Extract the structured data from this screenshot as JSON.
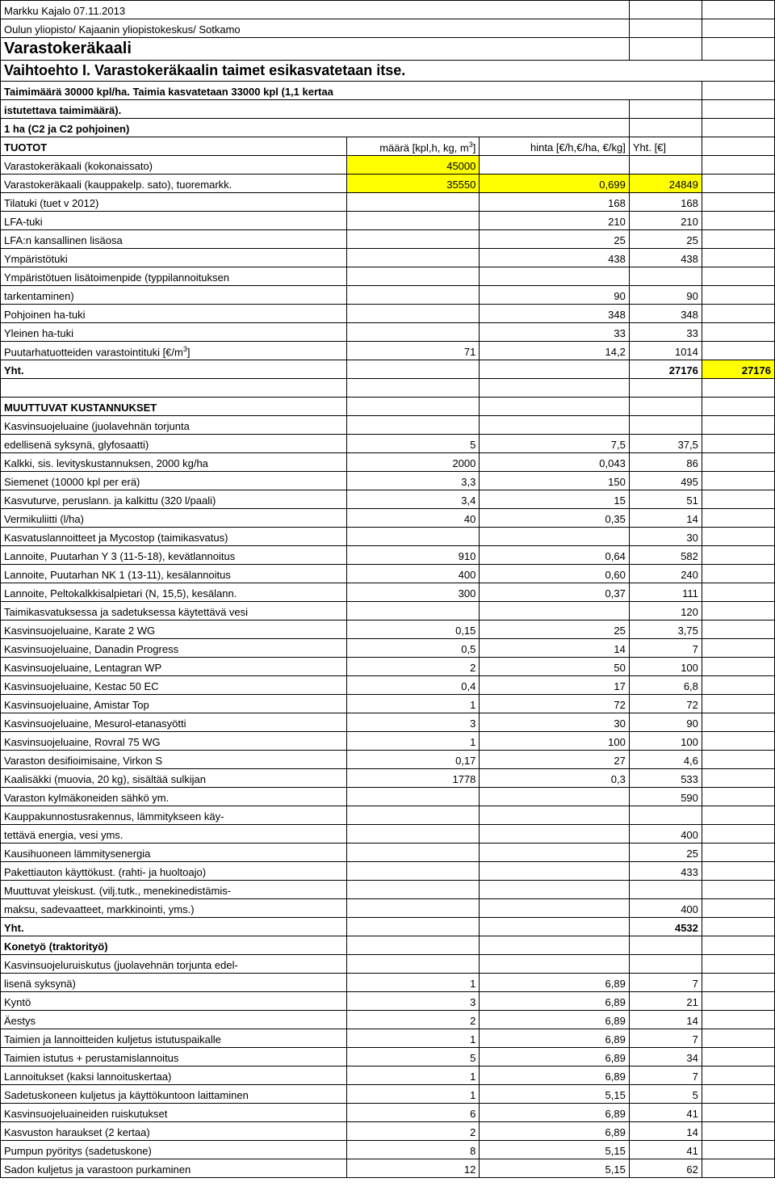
{
  "header": {
    "author_date": "Markku Kajalo 07.11.2013",
    "institution": "Oulun yliopisto/ Kajaanin yliopistokeskus/ Sotkamo",
    "title1": "Varastokeräkaali",
    "title2": "Vaihtoehto I. Varastokeräkaalin taimet esikasvatetaan itse.",
    "subtitle1": "Taimimäärä 30000 kpl/ha. Taimia kasvatetaan 33000 kpl (1,1 kertaa",
    "subtitle2": "istutettava taimimäärä).",
    "area": "1 ha  (C2 ja C2 pohjoinen)"
  },
  "tuotot": {
    "section": "TUOTOT",
    "h1": "määrä [kpl,h, kg, m",
    "h1sup": "3",
    "h1end": "]",
    "h2": "hinta [€/h,€/ha, €/kg]",
    "h3": "Yht. [€]",
    "rows": [
      {
        "label": "Varastokeräkaali (kokonaissato)",
        "c1": "45000",
        "c2": "",
        "c3": "",
        "yellow1": true
      },
      {
        "label": "Varastokeräkaali (kauppakelp. sato), tuoremarkk.",
        "c1": "35550",
        "c2": "0,699",
        "c3": "24849",
        "yellow_row": true
      },
      {
        "label": "Tilatuki (tuet v 2012)",
        "c1": "",
        "c2": "168",
        "c3": "168"
      },
      {
        "label": "LFA-tuki",
        "c1": "",
        "c2": "210",
        "c3": "210"
      },
      {
        "label": "LFA:n kansallinen lisäosa",
        "c1": "",
        "c2": "25",
        "c3": "25"
      },
      {
        "label": "Ympäristötuki",
        "c1": "",
        "c2": "438",
        "c3": "438"
      },
      {
        "label": "Ympäristötuen lisätoimenpide (typpilannoituksen",
        "c1": "",
        "c2": "",
        "c3": ""
      },
      {
        "label": "tarkentaminen)",
        "c1": "",
        "c2": "90",
        "c3": "90"
      },
      {
        "label": "Pohjoinen ha-tuki",
        "c1": "",
        "c2": "348",
        "c3": "348"
      },
      {
        "label": "Yleinen ha-tuki",
        "c1": "",
        "c2": "33",
        "c3": "33"
      },
      {
        "label": "Puutarhatuotteiden varastointituki [€/m³]",
        "c1": "71",
        "c2": "14,2",
        "c3": "1014",
        "sup_label": true
      }
    ],
    "total": {
      "label": "Yht.",
      "c3": "27176",
      "c4": "27176"
    }
  },
  "muuttuvat": {
    "section": "MUUTTUVAT KUSTANNUKSET",
    "sub1": "Kasvinsuojeluaine (juolavehnän torjunta",
    "rows": [
      {
        "label": "edellisenä syksynä, glyfosaatti)",
        "c1": "5",
        "c2": "7,5",
        "c3": "37,5"
      },
      {
        "label": "Kalkki, sis. levityskustannuksen, 2000 kg/ha",
        "c1": "2000",
        "c2": "0,043",
        "c3": "86"
      },
      {
        "label": "Siemenet (10000 kpl per erä)",
        "c1": "3,3",
        "c2": "150",
        "c3": "495"
      },
      {
        "label": "Kasvuturve, peruslann. ja kalkittu (320 l/paali)",
        "c1": "3,4",
        "c2": "15",
        "c3": "51"
      },
      {
        "label": "Vermikuliitti (l/ha)",
        "c1": "40",
        "c2": "0,35",
        "c3": "14"
      },
      {
        "label": "Kasvatuslannoitteet ja Mycostop (taimikasvatus)",
        "c1": "",
        "c2": "",
        "c3": "30"
      },
      {
        "label": "Lannoite, Puutarhan Y 3 (11-5-18), kevätlannoitus",
        "c1": "910",
        "c2": "0,64",
        "c3": "582"
      },
      {
        "label": "Lannoite, Puutarhan NK 1 (13-11), kesälannoitus",
        "c1": "400",
        "c2": "0,60",
        "c3": "240"
      },
      {
        "label": "Lannoite, Peltokalkkisalpietari (N, 15,5), kesälann.",
        "c1": "300",
        "c2": "0,37",
        "c3": "111"
      },
      {
        "label": "Taimikasvatuksessa ja sadetuksessa käytettävä vesi",
        "c1": "",
        "c2": "",
        "c3": "120"
      },
      {
        "label": "Kasvinsuojeluaine, Karate 2 WG",
        "c1": "0,15",
        "c2": "25",
        "c3": "3,75"
      },
      {
        "label": "Kasvinsuojeluaine, Danadin Progress",
        "c1": "0,5",
        "c2": "14",
        "c3": "7"
      },
      {
        "label": "Kasvinsuojeluaine, Lentagran WP",
        "c1": "2",
        "c2": "50",
        "c3": "100"
      },
      {
        "label": "Kasvinsuojeluaine, Kestac 50 EC",
        "c1": "0,4",
        "c2": "17",
        "c3": "6,8"
      },
      {
        "label": "Kasvinsuojeluaine, Amistar Top",
        "c1": "1",
        "c2": "72",
        "c3": "72"
      },
      {
        "label": "Kasvinsuojeluaine, Mesurol-etanasyötti",
        "c1": "3",
        "c2": "30",
        "c3": "90"
      },
      {
        "label": "Kasvinsuojeluaine, Rovral 75 WG",
        "c1": "1",
        "c2": "100",
        "c3": "100"
      },
      {
        "label": "Varaston desifioimisaine, Virkon S",
        "c1": "0,17",
        "c2": "27",
        "c3": "4,6"
      },
      {
        "label": "Kaalisäkki (muovia, 20 kg), sisältää sulkijan",
        "c1": "1778",
        "c2": "0,3",
        "c3": "533"
      },
      {
        "label": "Varaston kylmäkoneiden sähkö ym.",
        "c1": "",
        "c2": "",
        "c3": "590"
      },
      {
        "label": "Kauppakunnostusrakennus, lämmitykseen käy-",
        "c1": "",
        "c2": "",
        "c3": ""
      },
      {
        "label": "tettävä energia, vesi yms.",
        "c1": "",
        "c2": "",
        "c3": "400"
      },
      {
        "label": "Kausihuoneen lämmitysenergia",
        "c1": "",
        "c2": "",
        "c3": "25"
      },
      {
        "label": "Pakettiauton käyttökust. (rahti- ja huoltoajo)",
        "c1": "",
        "c2": "",
        "c3": "433"
      },
      {
        "label": "Muuttuvat yleiskust. (vilj.tutk., menekinedistämis-",
        "c1": "",
        "c2": "",
        "c3": ""
      },
      {
        "label": "maksu, sadevaatteet, markkinointi, yms.)",
        "c1": "",
        "c2": "",
        "c3": "400"
      }
    ],
    "yht": {
      "label": "Yht.",
      "c3": "4532"
    }
  },
  "konetyo": {
    "section": "Konetyö (traktorityö)",
    "sub1": "Kasvinsuojeluruiskutus (juolavehnän torjunta edel-",
    "rows": [
      {
        "label": "lisenä syksynä)",
        "c1": "1",
        "c2": "6,89",
        "c3": "7"
      },
      {
        "label": "Kyntö",
        "c1": "3",
        "c2": "6,89",
        "c3": "21"
      },
      {
        "label": "Äestys",
        "c1": "2",
        "c2": "6,89",
        "c3": "14"
      },
      {
        "label": "Taimien ja lannoitteiden kuljetus istutuspaikalle",
        "c1": "1",
        "c2": "6,89",
        "c3": "7"
      },
      {
        "label": "Taimien istutus + perustamislannoitus",
        "c1": "5",
        "c2": "6,89",
        "c3": "34"
      },
      {
        "label": "Lannoitukset (kaksi lannoituskertaa)",
        "c1": "1",
        "c2": "6,89",
        "c3": "7"
      },
      {
        "label": "Sadetuskoneen kuljetus ja käyttökuntoon laittaminen",
        "c1": "1",
        "c2": "5,15",
        "c3": "5"
      },
      {
        "label": "Kasvinsuojeluaineiden ruiskutukset",
        "c1": "6",
        "c2": "6,89",
        "c3": "41"
      },
      {
        "label": "Kasvuston haraukset (2 kertaa)",
        "c1": "2",
        "c2": "6,89",
        "c3": "14"
      },
      {
        "label": "Pumpun pyöritys (sadetuskone)",
        "c1": "8",
        "c2": "5,15",
        "c3": "41"
      },
      {
        "label": "Sadon kuljetus ja varastoon purkaminen",
        "c1": "12",
        "c2": "5,15",
        "c3": "62"
      }
    ]
  },
  "colors": {
    "yellow": "#ffff00",
    "border": "#000000",
    "bg": "#ffffff"
  }
}
